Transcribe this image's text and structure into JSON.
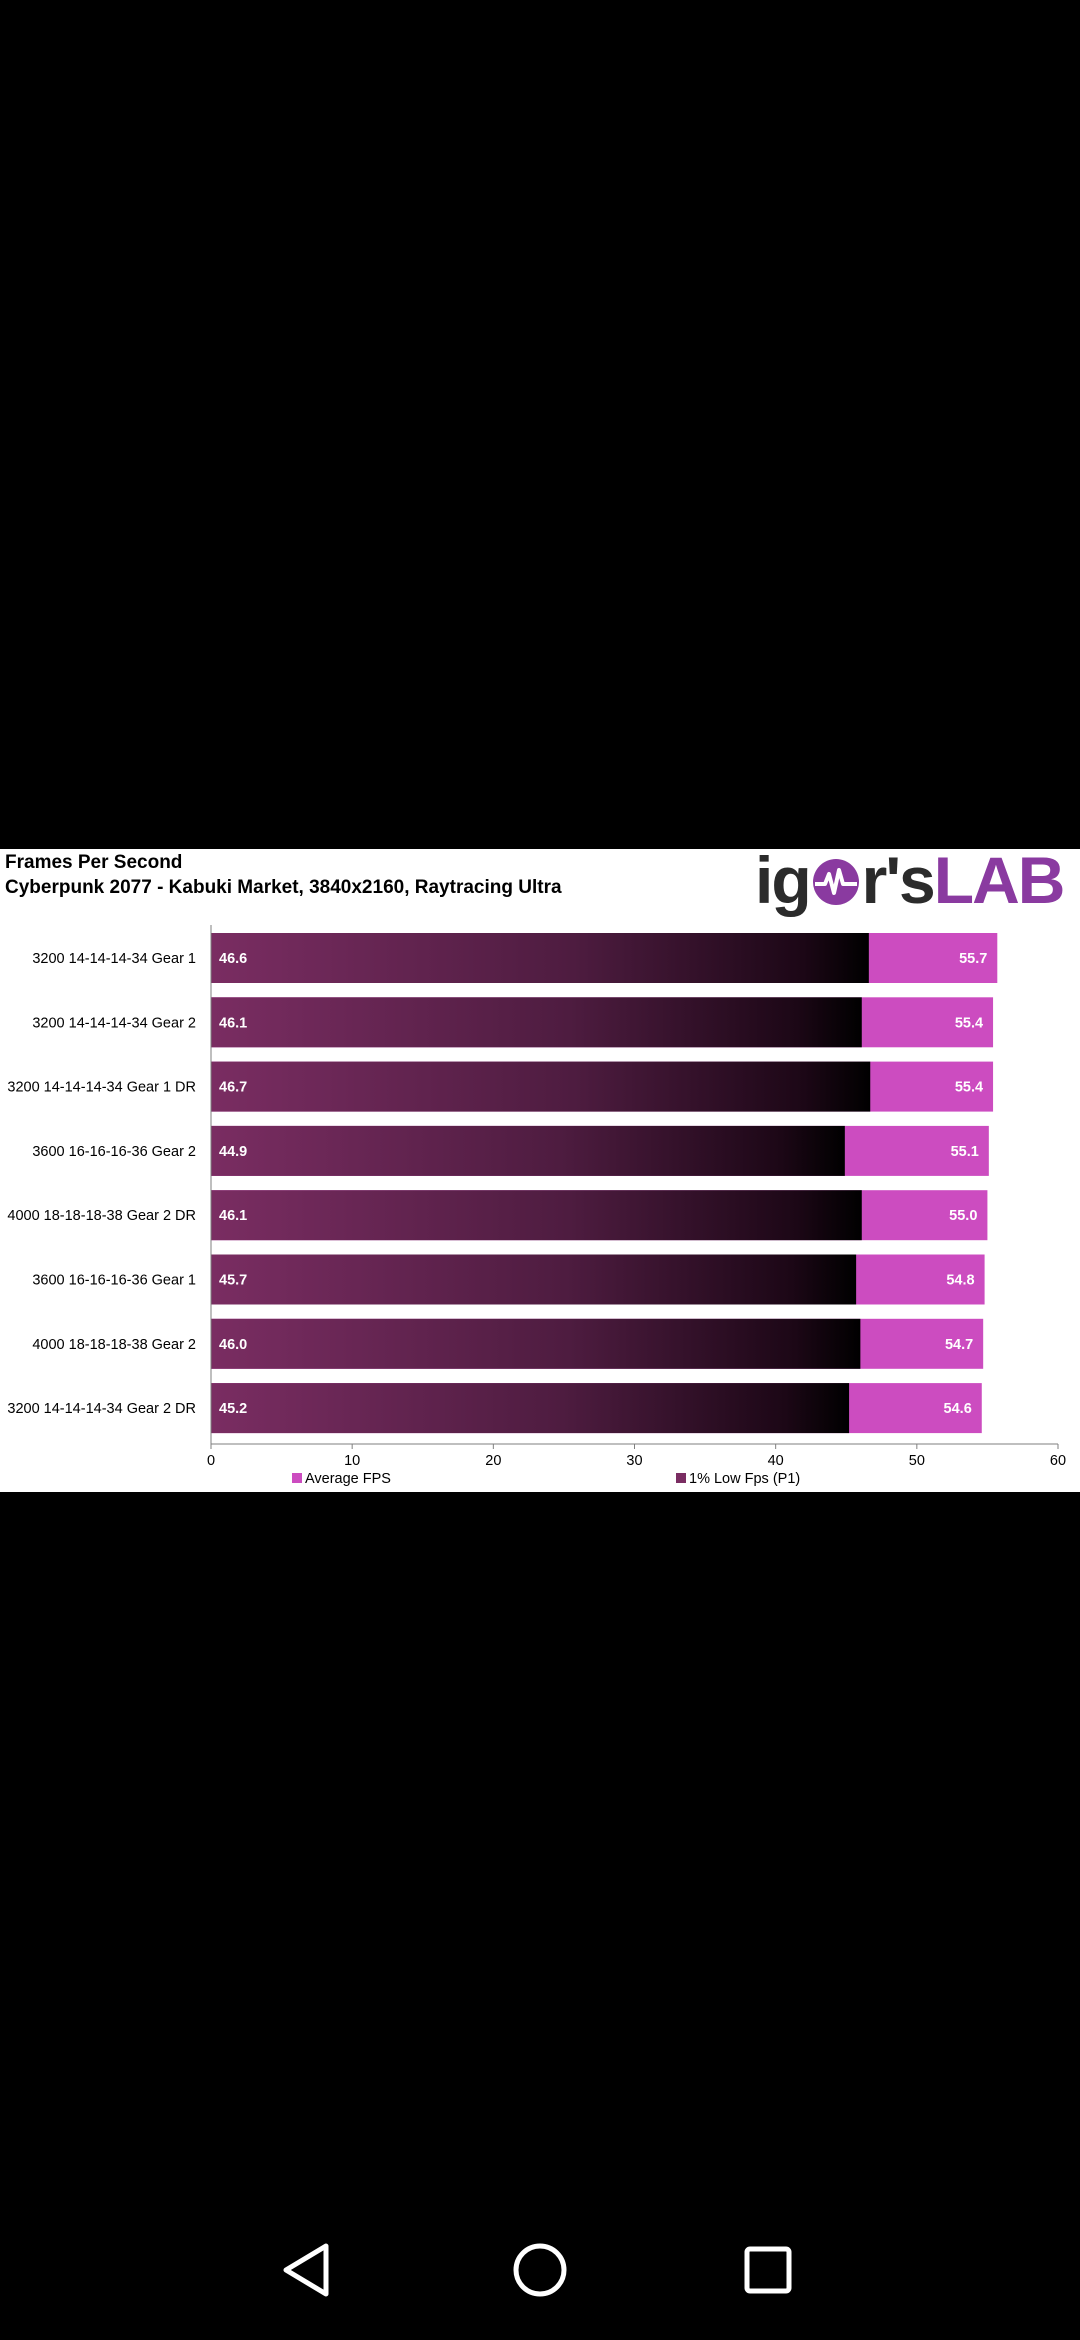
{
  "chart": {
    "title": "Frames Per Second",
    "subtitle": "Cyberpunk 2077 - Kabuki Market, 3840x2160, Raytracing Ultra",
    "brand": {
      "part1": "ig",
      "part2": "r's",
      "part3": "LAB",
      "color_dark": "#2b2b2b",
      "color_accent": "#8a3aa0"
    }
  },
  "chart_data": {
    "type": "bar",
    "orientation": "horizontal",
    "stacked_overlay": true,
    "categories": [
      "3200 14-14-14-34 Gear 1",
      "3200 14-14-14-34 Gear 2",
      "3200 14-14-14-34 Gear 1 DR",
      "3600 16-16-16-36 Gear 2",
      "4000 18-18-18-38 Gear 2 DR",
      "3600 16-16-16-36 Gear 1",
      "4000 18-18-18-38 Gear 2",
      "3200 14-14-14-34 Gear 2 DR"
    ],
    "series": [
      {
        "name": "Average FPS",
        "color": "#cc4cc0",
        "values": [
          55.7,
          55.4,
          55.4,
          55.1,
          55.0,
          54.8,
          54.7,
          54.6
        ],
        "labels": [
          "55.7",
          "55.4",
          "55.4",
          "55.1",
          "55.0",
          "54.8",
          "54.7",
          "54.6"
        ]
      },
      {
        "name": "1% Low Fps (P1)",
        "color": "#7a2d62",
        "values": [
          46.6,
          46.1,
          46.7,
          44.9,
          46.1,
          45.7,
          46.0,
          45.2
        ],
        "labels": [
          "46.6",
          "46.1",
          "46.7",
          "44.9",
          "46.1",
          "45.7",
          "46.0",
          "45.2"
        ]
      }
    ],
    "xlim": [
      0,
      60
    ],
    "xticks": [
      0,
      10,
      20,
      30,
      40,
      50,
      60
    ],
    "xtick_labels": [
      "0",
      "10",
      "20",
      "30",
      "40",
      "50",
      "60"
    ],
    "legend_position": "bottom",
    "grid": false
  },
  "navigation": {
    "back_icon": "triangle-back-icon",
    "home_icon": "circle-home-icon",
    "recents_icon": "square-recents-icon",
    "icon_color": "#ffffff"
  }
}
